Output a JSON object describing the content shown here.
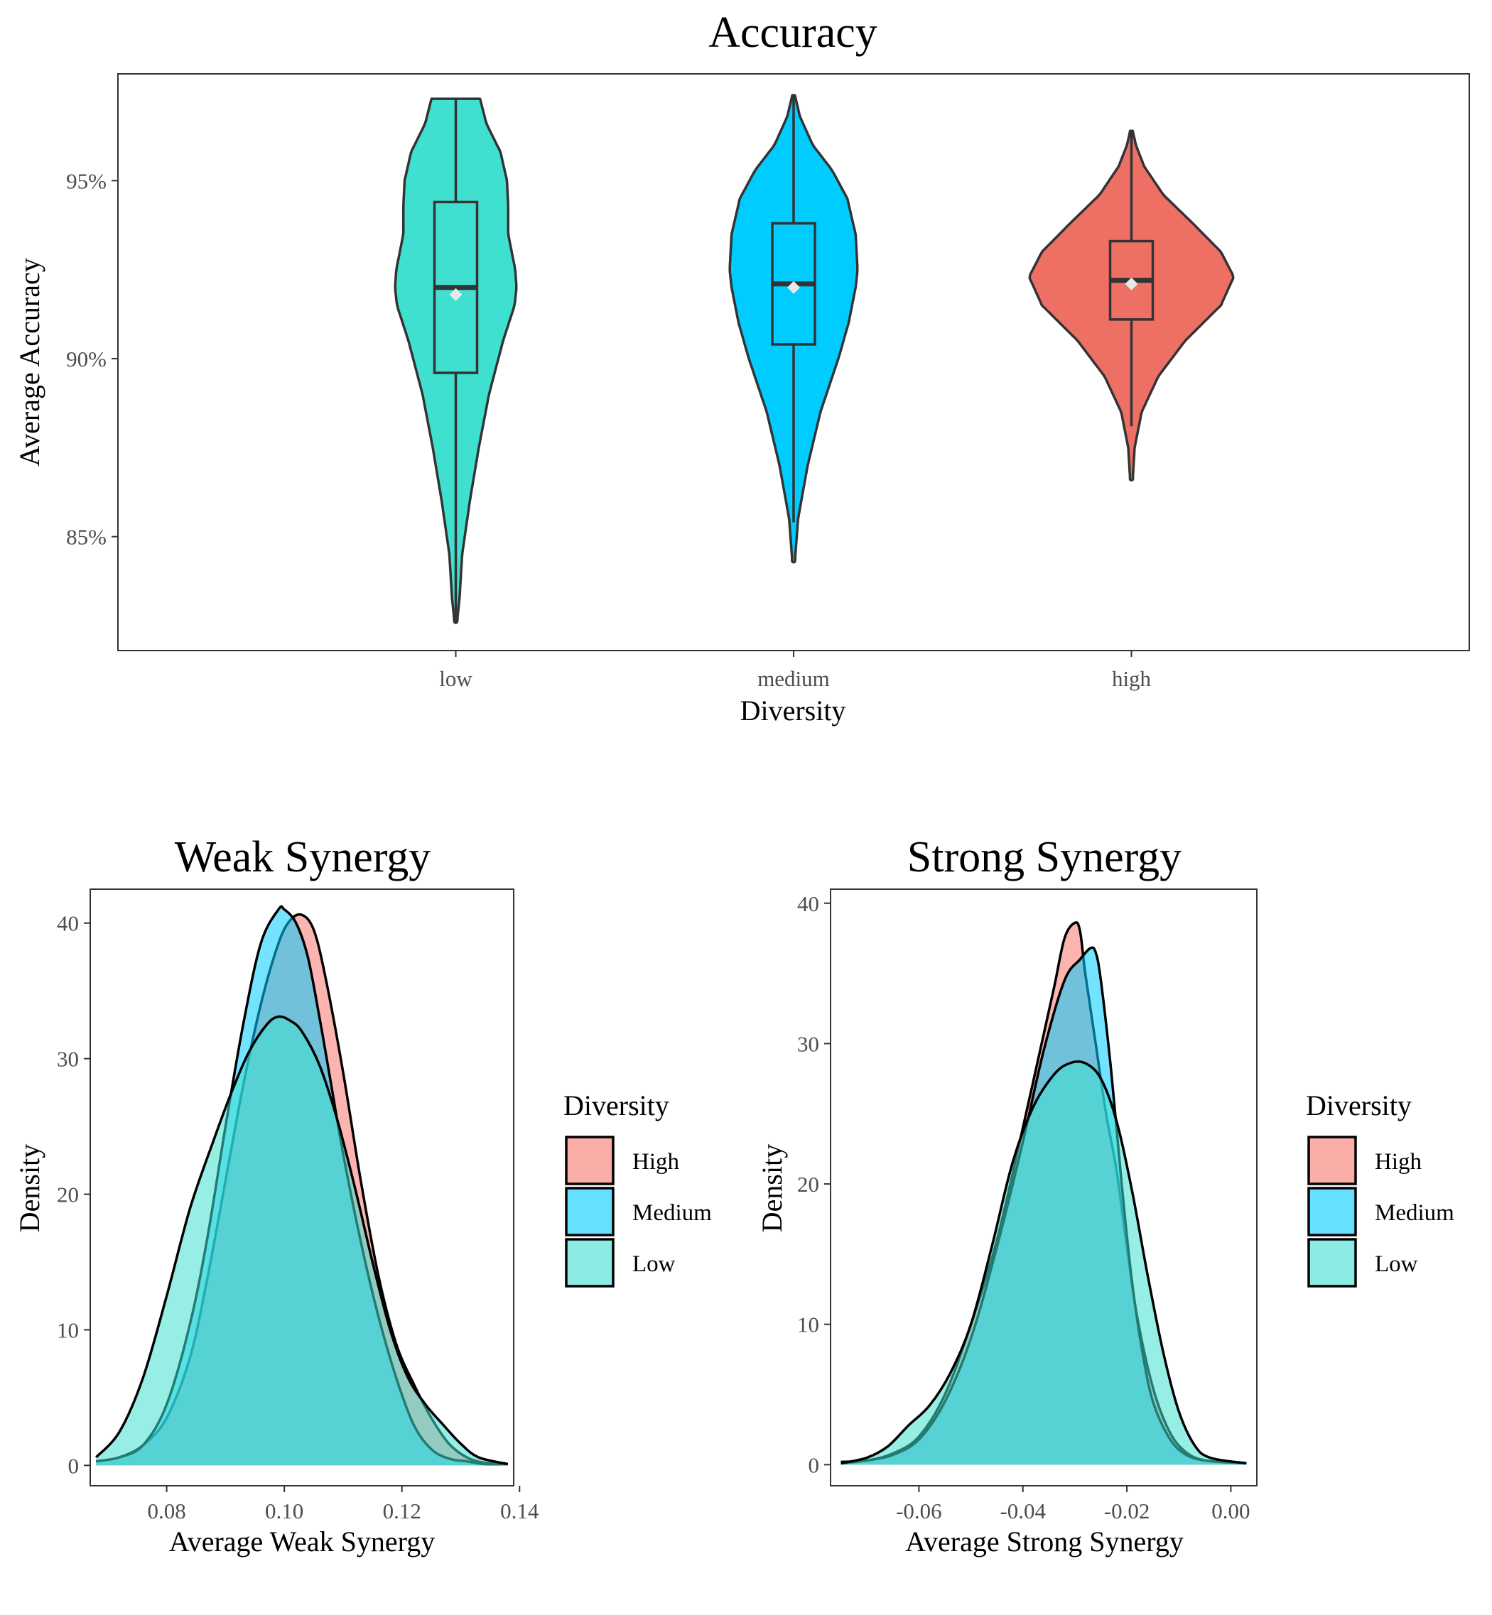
{
  "chart_data": [
    {
      "type": "violin",
      "title": "Accuracy",
      "xlabel": "Diversity",
      "ylabel": "Average Accuracy",
      "categories": [
        "low",
        "medium",
        "high"
      ],
      "ylim": [
        81.8,
        98.0
      ],
      "yticks": [
        85,
        90,
        95
      ],
      "ytick_labels": [
        "85%",
        "90%",
        "95%"
      ],
      "grid": false,
      "colors": [
        "#40E0D0",
        "#00CCFF",
        "#EE6F64"
      ],
      "series": [
        {
          "category": "low",
          "min": 82.6,
          "max": 97.3,
          "box": {
            "q1": 89.6,
            "median": 92.0,
            "q3": 94.4,
            "whisker_low": 82.6,
            "whisker_high": 97.3
          },
          "mean": 91.8,
          "density_profile": [
            [
              82.6,
              0.02
            ],
            [
              83.3,
              0.06
            ],
            [
              84.5,
              0.1
            ],
            [
              86.0,
              0.22
            ],
            [
              87.5,
              0.36
            ],
            [
              89.0,
              0.52
            ],
            [
              90.5,
              0.74
            ],
            [
              91.5,
              0.92
            ],
            [
              92.0,
              0.95
            ],
            [
              92.5,
              0.93
            ],
            [
              93.5,
              0.82
            ],
            [
              94.3,
              0.82
            ],
            [
              95.0,
              0.8
            ],
            [
              95.8,
              0.7
            ],
            [
              96.6,
              0.48
            ],
            [
              97.3,
              0.38
            ]
          ]
        },
        {
          "category": "medium",
          "min": 84.3,
          "max": 97.4,
          "box": {
            "q1": 90.4,
            "median": 92.1,
            "q3": 93.8,
            "whisker_low": 85.4,
            "whisker_high": 97.4
          },
          "mean": 92.0,
          "density_profile": [
            [
              84.3,
              0.02
            ],
            [
              85.5,
              0.07
            ],
            [
              87.0,
              0.22
            ],
            [
              88.5,
              0.42
            ],
            [
              90.0,
              0.7
            ],
            [
              91.0,
              0.86
            ],
            [
              92.0,
              0.97
            ],
            [
              92.5,
              1.0
            ],
            [
              93.5,
              0.97
            ],
            [
              94.5,
              0.84
            ],
            [
              95.3,
              0.6
            ],
            [
              96.0,
              0.3
            ],
            [
              96.8,
              0.1
            ],
            [
              97.4,
              0.02
            ]
          ]
        },
        {
          "category": "high",
          "min": 86.6,
          "max": 96.4,
          "box": {
            "q1": 91.1,
            "median": 92.2,
            "q3": 93.3,
            "whisker_low": 88.1,
            "whisker_high": 96.4
          },
          "mean": 92.1,
          "density_profile": [
            [
              86.6,
              0.02
            ],
            [
              87.5,
              0.05
            ],
            [
              88.5,
              0.16
            ],
            [
              89.5,
              0.42
            ],
            [
              90.5,
              0.84
            ],
            [
              91.5,
              1.4
            ],
            [
              92.3,
              1.6
            ],
            [
              93.0,
              1.4
            ],
            [
              93.8,
              0.96
            ],
            [
              94.6,
              0.5
            ],
            [
              95.4,
              0.2
            ],
            [
              96.0,
              0.07
            ],
            [
              96.4,
              0.02
            ]
          ]
        }
      ]
    },
    {
      "type": "area",
      "title": "Weak Synergy",
      "xlabel": "Average Weak Synergy",
      "ylabel": "Density",
      "xlim": [
        0.067,
        0.139
      ],
      "ylim": [
        -1.5,
        42.5
      ],
      "xticks": [
        0.08,
        0.1,
        0.12,
        0.14
      ],
      "xtick_labels": [
        "0.08",
        "0.10",
        "0.12",
        "0.14"
      ],
      "yticks": [
        0,
        10,
        20,
        30,
        40
      ],
      "ytick_labels": [
        "0",
        "10",
        "20",
        "30",
        "40"
      ],
      "grid": false,
      "legend": {
        "title": "Diversity",
        "position": "right",
        "entries": [
          "High",
          "Medium",
          "Low"
        ]
      },
      "series": [
        {
          "name": "High",
          "color": "#F8766D",
          "x": [
            0.068,
            0.072,
            0.076,
            0.08,
            0.084,
            0.087,
            0.09,
            0.093,
            0.096,
            0.099,
            0.101,
            0.103,
            0.105,
            0.107,
            0.11,
            0.113,
            0.116,
            0.119,
            0.122,
            0.125,
            0.128,
            0.131,
            0.134,
            0.138
          ],
          "y": [
            0.3,
            0.6,
            1.5,
            3.5,
            8.0,
            14.0,
            21.0,
            28.0,
            34.0,
            38.5,
            40.2,
            40.6,
            39.5,
            36.0,
            29.0,
            21.0,
            14.0,
            9.0,
            6.0,
            3.5,
            1.6,
            0.6,
            0.2,
            0.1
          ]
        },
        {
          "name": "Medium",
          "color": "#00CCFF",
          "x": [
            0.068,
            0.072,
            0.076,
            0.08,
            0.084,
            0.087,
            0.09,
            0.093,
            0.096,
            0.099,
            0.1,
            0.102,
            0.104,
            0.106,
            0.108,
            0.11,
            0.113,
            0.116,
            0.119,
            0.122,
            0.125,
            0.128,
            0.131,
            0.134,
            0.138
          ],
          "y": [
            0.3,
            0.6,
            1.5,
            4.5,
            10.5,
            17.0,
            25.0,
            32.5,
            38.5,
            41.0,
            41.0,
            40.0,
            37.5,
            33.0,
            28.0,
            23.0,
            16.5,
            11.0,
            6.5,
            3.0,
            1.2,
            0.5,
            0.3,
            0.1,
            0.1
          ]
        },
        {
          "name": "Low",
          "color": "#40E0D0",
          "x": [
            0.068,
            0.072,
            0.076,
            0.08,
            0.084,
            0.088,
            0.091,
            0.094,
            0.097,
            0.099,
            0.101,
            0.103,
            0.106,
            0.109,
            0.112,
            0.115,
            0.118,
            0.121,
            0.124,
            0.127,
            0.13,
            0.133,
            0.138
          ],
          "y": [
            0.6,
            2.5,
            6.5,
            12.5,
            19.0,
            24.0,
            27.5,
            30.5,
            32.5,
            33.1,
            32.8,
            32.0,
            29.5,
            25.5,
            20.5,
            15.0,
            10.0,
            6.5,
            4.5,
            3.0,
            1.6,
            0.6,
            0.1
          ]
        }
      ]
    },
    {
      "type": "area",
      "title": "Strong Synergy",
      "xlabel": "Average Strong Synergy",
      "ylabel": "Density",
      "xlim": [
        -0.077,
        0.005
      ],
      "ylim": [
        -1.5,
        41.0
      ],
      "xticks": [
        -0.06,
        -0.04,
        -0.02,
        0.0
      ],
      "xtick_labels": [
        "-0.06",
        "-0.04",
        "-0.02",
        "0.00"
      ],
      "yticks": [
        0,
        10,
        20,
        30,
        40
      ],
      "ytick_labels": [
        "0",
        "10",
        "20",
        "30",
        "40"
      ],
      "grid": false,
      "legend": {
        "title": "Diversity",
        "position": "right",
        "entries": [
          "High",
          "Medium",
          "Low"
        ]
      },
      "series": [
        {
          "name": "High",
          "color": "#F8766D",
          "x": [
            -0.075,
            -0.07,
            -0.065,
            -0.06,
            -0.055,
            -0.05,
            -0.045,
            -0.04,
            -0.037,
            -0.034,
            -0.032,
            -0.03,
            -0.029,
            -0.028,
            -0.026,
            -0.024,
            -0.022,
            -0.02,
            -0.018,
            -0.015,
            -0.012,
            -0.009,
            -0.005,
            0.003
          ],
          "y": [
            0.2,
            0.3,
            0.8,
            2.0,
            5.0,
            10.0,
            16.0,
            24.0,
            29.0,
            34.0,
            37.5,
            38.6,
            38.0,
            35.0,
            30.0,
            25.0,
            21.0,
            15.5,
            10.5,
            5.5,
            2.5,
            1.0,
            0.3,
            0.1
          ]
        },
        {
          "name": "Medium",
          "color": "#00CCFF",
          "x": [
            -0.075,
            -0.07,
            -0.065,
            -0.06,
            -0.055,
            -0.05,
            -0.045,
            -0.04,
            -0.036,
            -0.032,
            -0.029,
            -0.027,
            -0.026,
            -0.025,
            -0.023,
            -0.021,
            -0.019,
            -0.017,
            -0.015,
            -0.012,
            -0.009,
            -0.005,
            0.003
          ],
          "y": [
            0.1,
            0.3,
            0.7,
            1.8,
            4.5,
            9.0,
            15.5,
            23.0,
            29.5,
            34.5,
            36.0,
            36.8,
            36.5,
            34.5,
            28.0,
            20.0,
            13.0,
            8.0,
            4.5,
            2.0,
            0.8,
            0.3,
            0.1
          ]
        },
        {
          "name": "Low",
          "color": "#40E0D0",
          "x": [
            -0.075,
            -0.07,
            -0.066,
            -0.062,
            -0.058,
            -0.054,
            -0.05,
            -0.046,
            -0.042,
            -0.038,
            -0.034,
            -0.031,
            -0.028,
            -0.025,
            -0.022,
            -0.019,
            -0.016,
            -0.013,
            -0.01,
            -0.007,
            -0.004,
            0.003
          ],
          "y": [
            0.1,
            0.5,
            1.3,
            2.8,
            4.2,
            6.5,
            10.0,
            15.5,
            21.5,
            25.5,
            27.8,
            28.6,
            28.6,
            27.5,
            24.5,
            19.5,
            13.5,
            8.0,
            3.8,
            1.4,
            0.5,
            0.1
          ]
        }
      ]
    }
  ]
}
